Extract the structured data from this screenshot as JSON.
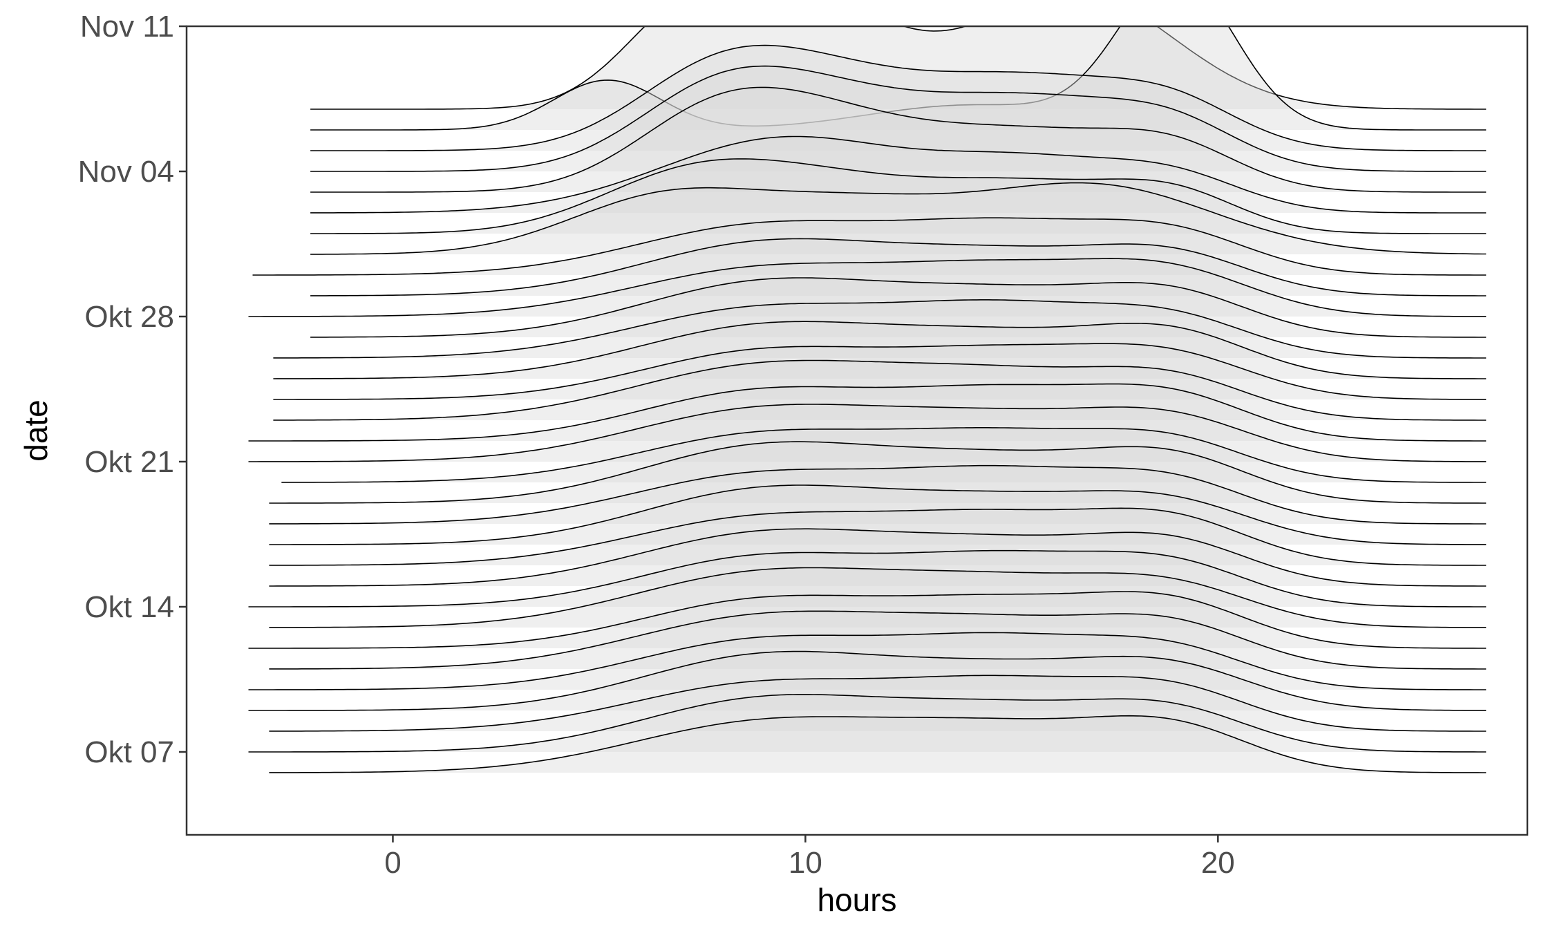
{
  "chart_data": {
    "type": "ridgeline",
    "title": "",
    "xlabel": "hours",
    "ylabel": "date",
    "xlim": [
      -5,
      27.5
    ],
    "ylim": [
      "2023-10-03",
      "2023-11-11"
    ],
    "x_ticks": [
      0,
      10,
      20
    ],
    "y_ticks": [
      {
        "date": "2023-10-07",
        "label": "Okt 07"
      },
      {
        "date": "2023-10-14",
        "label": "Okt 14"
      },
      {
        "date": "2023-10-21",
        "label": "Okt 21"
      },
      {
        "date": "2023-10-28",
        "label": "Okt 28"
      },
      {
        "date": "2023-11-04",
        "label": "Nov 04"
      },
      {
        "date": "2023-11-11",
        "label": "Nov 11"
      }
    ],
    "grid": false,
    "legend": "none",
    "colors": {
      "fill": "#b3b3b3",
      "fill_top": "#d9d9d9",
      "line": "#000000",
      "panel_border": "#333333"
    },
    "series": [
      {
        "date": "2023-10-06",
        "x_range": [
          -3,
          26.5
        ],
        "peaks": [
          [
            9,
            2.4,
            3.2
          ],
          [
            15,
            2.0,
            2.8
          ],
          [
            19,
            1.8,
            1.9
          ]
        ]
      },
      {
        "date": "2023-10-07",
        "x_range": [
          -3.5,
          26.5
        ],
        "peaks": [
          [
            9,
            2.5,
            3.0
          ],
          [
            15,
            2.0,
            2.8
          ],
          [
            19,
            1.6,
            1.9
          ]
        ]
      },
      {
        "date": "2023-10-08",
        "x_range": [
          -3,
          26.5
        ],
        "peaks": [
          [
            9,
            2.3,
            3.2
          ],
          [
            15,
            2.1,
            2.6
          ],
          [
            19,
            1.7,
            1.9
          ]
        ]
      },
      {
        "date": "2023-10-09",
        "x_range": [
          -3.5,
          26.5
        ],
        "peaks": [
          [
            9,
            2.6,
            3.0
          ],
          [
            15,
            1.9,
            2.8
          ],
          [
            19,
            1.7,
            2.0
          ]
        ]
      },
      {
        "date": "2023-10-10",
        "x_range": [
          -3.5,
          26.5
        ],
        "peaks": [
          [
            9,
            2.4,
            3.1
          ],
          [
            15,
            2.2,
            2.6
          ],
          [
            19,
            1.6,
            1.9
          ]
        ]
      },
      {
        "date": "2023-10-11",
        "x_range": [
          -3,
          26.5
        ],
        "peaks": [
          [
            9,
            2.5,
            3.2
          ],
          [
            15,
            2.0,
            2.8
          ],
          [
            19,
            1.7,
            1.9
          ]
        ]
      },
      {
        "date": "2023-10-12",
        "x_range": [
          -3.5,
          26.5
        ],
        "peaks": [
          [
            9,
            2.3,
            3.0
          ],
          [
            15,
            2.1,
            2.7
          ],
          [
            19,
            1.8,
            1.9
          ]
        ]
      },
      {
        "date": "2023-10-13",
        "x_range": [
          -3,
          26.5
        ],
        "peaks": [
          [
            9,
            2.6,
            3.2
          ],
          [
            15,
            2.0,
            2.8
          ],
          [
            19,
            1.6,
            2.0
          ]
        ]
      },
      {
        "date": "2023-10-14",
        "x_range": [
          -3.5,
          26.5
        ],
        "peaks": [
          [
            9,
            2.4,
            3.0
          ],
          [
            15,
            2.2,
            2.6
          ],
          [
            19,
            1.7,
            1.9
          ]
        ]
      },
      {
        "date": "2023-10-15",
        "x_range": [
          -3,
          26.5
        ],
        "peaks": [
          [
            9,
            2.5,
            3.1
          ],
          [
            15,
            1.9,
            2.8
          ],
          [
            19,
            1.7,
            1.9
          ]
        ]
      },
      {
        "date": "2023-10-16",
        "x_range": [
          -3,
          26.5
        ],
        "peaks": [
          [
            9,
            2.3,
            3.2
          ],
          [
            15,
            2.1,
            2.7
          ],
          [
            19,
            1.8,
            1.9
          ]
        ]
      },
      {
        "date": "2023-10-17",
        "x_range": [
          -3,
          26.5
        ],
        "peaks": [
          [
            9,
            2.6,
            3.0
          ],
          [
            15,
            2.0,
            2.8
          ],
          [
            19,
            1.6,
            2.0
          ]
        ]
      },
      {
        "date": "2023-10-18",
        "x_range": [
          -3,
          26.5
        ],
        "peaks": [
          [
            9,
            2.4,
            3.2
          ],
          [
            15,
            2.2,
            2.6
          ],
          [
            19,
            1.7,
            1.9
          ]
        ]
      },
      {
        "date": "2023-10-19",
        "x_range": [
          -3,
          26.5
        ],
        "peaks": [
          [
            9,
            2.7,
            3.0
          ],
          [
            15,
            2.0,
            2.8
          ],
          [
            19,
            1.8,
            1.9
          ]
        ]
      },
      {
        "date": "2023-10-20",
        "x_range": [
          -2.7,
          26.5
        ],
        "peaks": [
          [
            9,
            2.3,
            3.1
          ],
          [
            15,
            2.1,
            2.7
          ],
          [
            19,
            1.6,
            1.9
          ]
        ]
      },
      {
        "date": "2023-10-21",
        "x_range": [
          -3.5,
          26.5
        ],
        "peaks": [
          [
            9,
            2.5,
            3.2
          ],
          [
            15,
            1.9,
            2.8
          ],
          [
            19,
            1.7,
            2.0
          ]
        ]
      },
      {
        "date": "2023-10-22",
        "x_range": [
          -3.5,
          26.5
        ],
        "peaks": [
          [
            9,
            2.4,
            3.0
          ],
          [
            15,
            2.2,
            2.6
          ],
          [
            19,
            1.8,
            1.9
          ]
        ]
      },
      {
        "date": "2023-10-23",
        "x_range": [
          -2.9,
          26.5
        ],
        "peaks": [
          [
            9,
            2.6,
            3.2
          ],
          [
            15,
            2.0,
            2.8
          ],
          [
            19,
            1.6,
            1.9
          ]
        ]
      },
      {
        "date": "2023-10-24",
        "x_range": [
          -2.9,
          26.5
        ],
        "peaks": [
          [
            9,
            2.3,
            3.0
          ],
          [
            15,
            2.1,
            2.7
          ],
          [
            19,
            1.7,
            2.0
          ]
        ]
      },
      {
        "date": "2023-10-25",
        "x_range": [
          -2.9,
          26.5
        ],
        "peaks": [
          [
            9,
            2.5,
            3.1
          ],
          [
            15,
            1.9,
            2.8
          ],
          [
            19,
            1.8,
            1.9
          ]
        ]
      },
      {
        "date": "2023-10-26",
        "x_range": [
          -2.9,
          26.5
        ],
        "peaks": [
          [
            9,
            2.4,
            3.2
          ],
          [
            15,
            2.2,
            2.6
          ],
          [
            19,
            1.6,
            1.9
          ]
        ]
      },
      {
        "date": "2023-10-27",
        "x_range": [
          -2,
          26.5
        ],
        "peaks": [
          [
            9,
            2.6,
            3.0
          ],
          [
            15,
            2.0,
            2.8
          ],
          [
            19,
            1.7,
            1.9
          ]
        ]
      },
      {
        "date": "2023-10-28",
        "x_range": [
          -3.5,
          26.5
        ],
        "peaks": [
          [
            9,
            2.3,
            3.2
          ],
          [
            15,
            2.1,
            2.7
          ],
          [
            19,
            1.8,
            2.0
          ]
        ]
      },
      {
        "date": "2023-10-29",
        "x_range": [
          -2,
          26.5
        ],
        "peaks": [
          [
            9,
            2.5,
            3.0
          ],
          [
            15,
            1.9,
            2.8
          ],
          [
            19,
            1.6,
            1.9
          ]
        ]
      },
      {
        "date": "2023-10-30",
        "x_range": [
          -3.4,
          26.5
        ],
        "peaks": [
          [
            9,
            2.4,
            3.1
          ],
          [
            15,
            2.2,
            2.6
          ],
          [
            19,
            1.7,
            1.9
          ]
        ]
      },
      {
        "date": "2023-10-31",
        "x_range": [
          -2,
          26.5
        ],
        "peaks": [
          [
            6.5,
            2.6,
            2.3
          ],
          [
            11,
            2.2,
            2.5
          ],
          [
            17,
            3.3,
            2.9
          ]
        ]
      },
      {
        "date": "2023-11-01",
        "x_range": [
          -2,
          26.5
        ],
        "peaks": [
          [
            7,
            2.4,
            2.2
          ],
          [
            10.5,
            2.3,
            2.5
          ],
          [
            15.5,
            2.2,
            2.4
          ],
          [
            19,
            1.6,
            1.6
          ]
        ]
      },
      {
        "date": "2023-11-02",
        "x_range": [
          -2,
          26.5
        ],
        "peaks": [
          [
            9.5,
            3.6,
            3.0
          ],
          [
            15.5,
            2.2,
            2.3
          ],
          [
            19,
            1.5,
            1.7
          ]
        ]
      },
      {
        "date": "2023-11-03",
        "x_range": [
          -2,
          26.5
        ],
        "peaks": [
          [
            7.5,
            2.2,
            1.9
          ],
          [
            10,
            3.6,
            2.5
          ],
          [
            15.5,
            2.7,
            2.6
          ],
          [
            19,
            1.6,
            1.6
          ]
        ]
      },
      {
        "date": "2023-11-04",
        "x_range": [
          -2,
          26.5
        ],
        "peaks": [
          [
            7.5,
            2.2,
            1.9
          ],
          [
            10,
            3.6,
            2.5
          ],
          [
            15.5,
            3.3,
            2.6
          ],
          [
            19,
            1.6,
            1.6
          ]
        ]
      },
      {
        "date": "2023-11-05",
        "x_range": [
          -2,
          26.5
        ],
        "peaks": [
          [
            7.5,
            2.2,
            1.9
          ],
          [
            10,
            3.6,
            2.5
          ],
          [
            15.5,
            3.3,
            2.6
          ],
          [
            19,
            1.6,
            1.6
          ]
        ]
      },
      {
        "date": "2023-11-06",
        "x_range": [
          -2,
          26.5
        ],
        "peaks": [
          [
            5.2,
            2.4,
            1.3
          ],
          [
            14,
            1.2,
            2.5
          ],
          [
            19,
            7.4,
            1.4
          ]
        ]
      },
      {
        "date": "2023-11-07",
        "x_range": [
          -2,
          26.5
        ],
        "peaks": [
          [
            7.2,
            4.6,
            1.6
          ],
          [
            10.4,
            4.6,
            1.9
          ],
          [
            16.5,
            5.7,
            2.4
          ]
        ]
      }
    ]
  }
}
